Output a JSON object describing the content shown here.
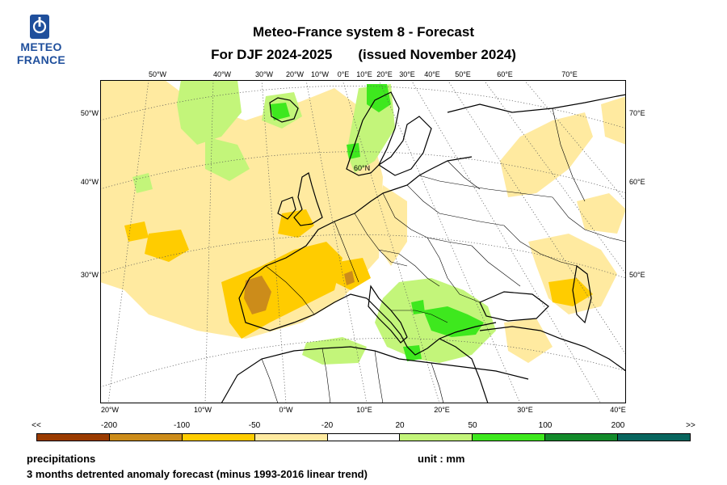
{
  "logo": {
    "line1": "METEO",
    "line2": "FRANCE",
    "icon": "meteo-france-emblem-icon",
    "color": "#1f4f9c"
  },
  "title": {
    "line1": "Meteo-France system 8  -  Forecast",
    "line2_season": "For DJF 2024-2025",
    "line2_issued": "(issued November 2024)"
  },
  "map": {
    "top_lon_labels": [
      "50°W",
      "40°W",
      "30°W",
      "20°W",
      "10°W",
      "0°E",
      "10°E",
      "20°E",
      "30°E",
      "40°E",
      "50°E",
      "60°E",
      "70°E"
    ],
    "bottom_lon_labels": [
      "20°W",
      "10°W",
      "0°W",
      "10°E",
      "20°E",
      "30°E",
      "40°E"
    ],
    "left_lat_labels": [
      "50°W",
      "40°W",
      "30°W"
    ],
    "right_lat_labels": [
      "70°E",
      "60°E",
      "50°E"
    ],
    "inner_lat_label": "60°N",
    "ocean_color": "#ffffff",
    "coast_color": "#000000"
  },
  "legend": {
    "labels": [
      "<<",
      "-200",
      "-100",
      "-50",
      "-20",
      "20",
      "50",
      "100",
      "200",
      ">>"
    ],
    "colors": [
      "#9a3b00",
      "#cc8c1a",
      "#ffcc00",
      "#ffeaa0",
      "#ffffff",
      "#c3f57a",
      "#3ee81e",
      "#128a2b",
      "#08655e"
    ]
  },
  "footer": {
    "variable": "precipitations",
    "unit": "unit : mm",
    "description": "3 months detrented anomaly forecast (minus 1993-2016 linear trend)"
  }
}
